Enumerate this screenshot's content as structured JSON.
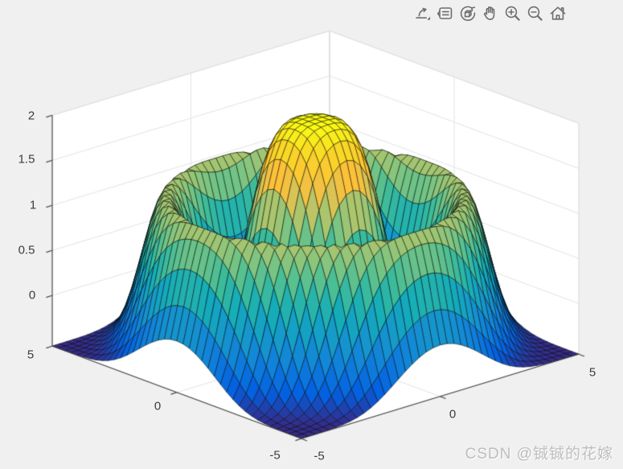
{
  "figure": {
    "background": "#f0f0f0",
    "wall_color": "#ffffff",
    "grid_color": "#e4e4e4",
    "axis_color": "#444444"
  },
  "toolbar": {
    "icons": [
      {
        "name": "export"
      },
      {
        "name": "datatips"
      },
      {
        "name": "rotate3d"
      },
      {
        "name": "pan"
      },
      {
        "name": "zoom-in"
      },
      {
        "name": "zoom-out"
      },
      {
        "name": "restore-view"
      }
    ]
  },
  "watermark": {
    "text": "CSDN @铖铖的花嫁"
  },
  "chart_data": {
    "type": "surface",
    "title": "",
    "xlabel": "",
    "ylabel": "",
    "zlabel": "",
    "x": {
      "lim": [
        -5,
        5
      ],
      "ticks": [
        "-5",
        "0",
        "5"
      ]
    },
    "y": {
      "lim": [
        -5,
        5
      ],
      "ticks": [
        "5",
        "0",
        "-5"
      ]
    },
    "z": {
      "lim": [
        -0.5625,
        2
      ],
      "ticks": [
        "0",
        "0.5",
        "1",
        "1.5",
        "2"
      ]
    },
    "grid": {
      "domain": [
        -5,
        5
      ],
      "step": 0.25,
      "lines_on_walls": true
    },
    "view": {
      "azimuth": -37.5,
      "elevation": 30,
      "projection": "orthographic"
    },
    "surface": {
      "description": "radially symmetric dome (max z=2) with surrounding ring hump (~1.2) and low corners (~-0.56)",
      "formula": "z = 2.56*exp(-(r/2.05)^4) + 1.72*exp(-((r-4)/0.95)^2) - 0.56, r = sqrt(x^2+y^2)",
      "params": {
        "A": 2.56,
        "dome_sigma": 2.05,
        "dome_power": 4,
        "B": 1.72,
        "ring_mu": 4.0,
        "ring_sigma": 0.95,
        "C": -0.56
      },
      "zmax": 2,
      "zmin": -0.5625
    },
    "colormap": {
      "name": "parula",
      "stops": [
        [
          53,
          42,
          135
        ],
        [
          3,
          97,
          225
        ],
        [
          15,
          127,
          219
        ],
        [
          22,
          151,
          205
        ],
        [
          20,
          172,
          185
        ],
        [
          62,
          188,
          154
        ],
        [
          129,
          197,
          128
        ],
        [
          194,
          197,
          99
        ],
        [
          252,
          192,
          58
        ],
        [
          249,
          213,
          40
        ],
        [
          249,
          251,
          21
        ]
      ]
    },
    "proj": {
      "origin": [
        392.5,
        372.3
      ],
      "xv": [
        34.5,
        -10.5
      ],
      "yv": [
        -31,
        -11.5
      ],
      "zv": [
        0,
        -112
      ],
      "sort_dir": [
        -0.527,
        -0.687
      ]
    },
    "mesh_edge_color": "rgba(0,0,0,0.9)"
  }
}
